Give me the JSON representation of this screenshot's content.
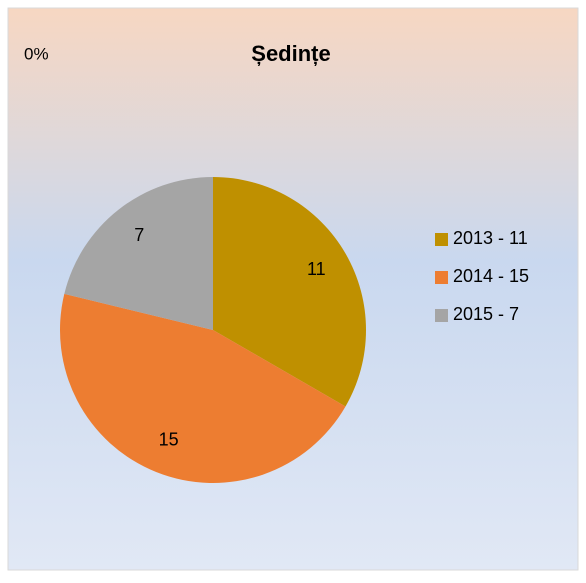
{
  "chart_data": {
    "type": "pie",
    "title": "Ședințe",
    "annotation": "0%",
    "categories": [
      "2013 - 11",
      "2014 - 15",
      "2015 - 7"
    ],
    "values": [
      11,
      15,
      7
    ],
    "colors": [
      "#bf9000",
      "#ed7d31",
      "#a5a5a5"
    ],
    "legend": "right"
  }
}
